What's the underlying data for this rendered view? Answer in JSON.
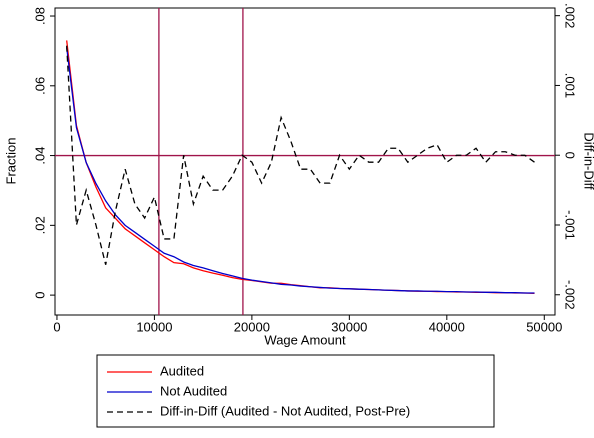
{
  "chart_data": {
    "type": "line",
    "xlabel": "Wage Amount",
    "ylabel": "Fraction",
    "y2label": "Diff-in-Diff",
    "x": [
      1000,
      2000,
      3000,
      4000,
      5000,
      6000,
      7000,
      8000,
      9000,
      10000,
      11000,
      12000,
      13000,
      14000,
      15000,
      16000,
      17000,
      18000,
      19000,
      20000,
      21000,
      22000,
      23000,
      24000,
      25000,
      26000,
      27000,
      28000,
      29000,
      30000,
      31000,
      32000,
      33000,
      34000,
      35000,
      36000,
      37000,
      38000,
      39000,
      40000,
      41000,
      42000,
      43000,
      44000,
      45000,
      46000,
      47000,
      48000,
      49000
    ],
    "series": [
      {
        "name": "Audited",
        "color": "#ff0000",
        "style": "solid",
        "axis": "y",
        "values": [
          0.073,
          0.0486,
          0.038,
          0.031,
          0.025,
          0.022,
          0.019,
          0.017,
          0.015,
          0.013,
          0.011,
          0.0093,
          0.009,
          0.0078,
          0.007,
          0.0063,
          0.0057,
          0.005,
          0.0045,
          0.0042,
          0.0038,
          0.0034,
          0.0034,
          0.003,
          0.0027,
          0.0024,
          0.0021,
          0.0021,
          0.0019,
          0.0018,
          0.0017,
          0.0016,
          0.0015,
          0.0014,
          0.0013,
          0.0012,
          0.0011,
          0.0011,
          0.001,
          0.001,
          0.0009,
          0.0009,
          0.0008,
          0.0008,
          0.0007,
          0.0007,
          0.0006,
          0.0006,
          0.0005
        ]
      },
      {
        "name": "Not Audited",
        "color": "#0000cc",
        "style": "solid",
        "axis": "y",
        "values": [
          0.071,
          0.048,
          0.038,
          0.032,
          0.027,
          0.023,
          0.02,
          0.018,
          0.016,
          0.014,
          0.012,
          0.011,
          0.0095,
          0.0085,
          0.0078,
          0.007,
          0.0062,
          0.0055,
          0.0048,
          0.0043,
          0.0039,
          0.0035,
          0.0031,
          0.0029,
          0.0026,
          0.0024,
          0.0022,
          0.002,
          0.0019,
          0.0018,
          0.0017,
          0.0016,
          0.0015,
          0.0014,
          0.0013,
          0.0012,
          0.0012,
          0.0011,
          0.0011,
          0.001,
          0.001,
          0.0009,
          0.0009,
          0.0008,
          0.0008,
          0.0007,
          0.0007,
          0.0006,
          0.0006
        ]
      },
      {
        "name": "Diff-in-Diff (Audited - Not Audited, Post-Pre)",
        "color": "#000000",
        "style": "dashed",
        "axis": "y2",
        "values": [
          0.00157,
          -0.001,
          -0.0005,
          -0.001,
          -0.00157,
          -0.0008,
          -0.0002,
          -0.0007,
          -0.0009,
          -0.0006,
          -0.0012,
          -0.0012,
          0,
          -0.0007,
          -0.0003,
          -0.0005,
          -0.0005,
          -0.0003,
          0,
          -0.0001,
          -0.0004,
          -0.0001,
          0.00054,
          0.0002,
          -0.0002,
          -0.0002,
          -0.0004,
          -0.0004,
          0,
          -0.0002,
          0,
          -0.0001,
          -0.0001,
          0.0001,
          0.0001,
          -0.0001,
          0,
          0.0001,
          0.00015,
          -0.0001,
          0,
          0,
          0.0001,
          -0.0001,
          5e-05,
          5e-05,
          0,
          0,
          -0.0001
        ]
      }
    ],
    "xlim": [
      -200,
      51100
    ],
    "xticks": [
      0,
      10000,
      20000,
      30000,
      40000,
      50000
    ],
    "ylim": [
      -0.0057,
      0.0823
    ],
    "yticks": [
      0,
      {
        "value": 0.02,
        "label": ".02"
      },
      {
        "value": 0.04,
        "label": ".04"
      },
      {
        "value": 0.06,
        "label": ".06"
      },
      {
        "value": 0.08,
        "label": ".08"
      }
    ],
    "y2lim": [
      -0.00229,
      0.00211
    ],
    "y2ticks": [
      {
        "value": -0.002,
        "label": "-.002"
      },
      {
        "value": -0.001,
        "label": "-.001"
      },
      0,
      {
        "value": 0.001,
        "label": ".001"
      },
      {
        "value": 0.002,
        "label": ".002"
      }
    ],
    "reference_lines": {
      "x": [
        10460,
        19080
      ],
      "y": 0.04,
      "color": "#a0144a"
    },
    "legend": "bottom"
  }
}
